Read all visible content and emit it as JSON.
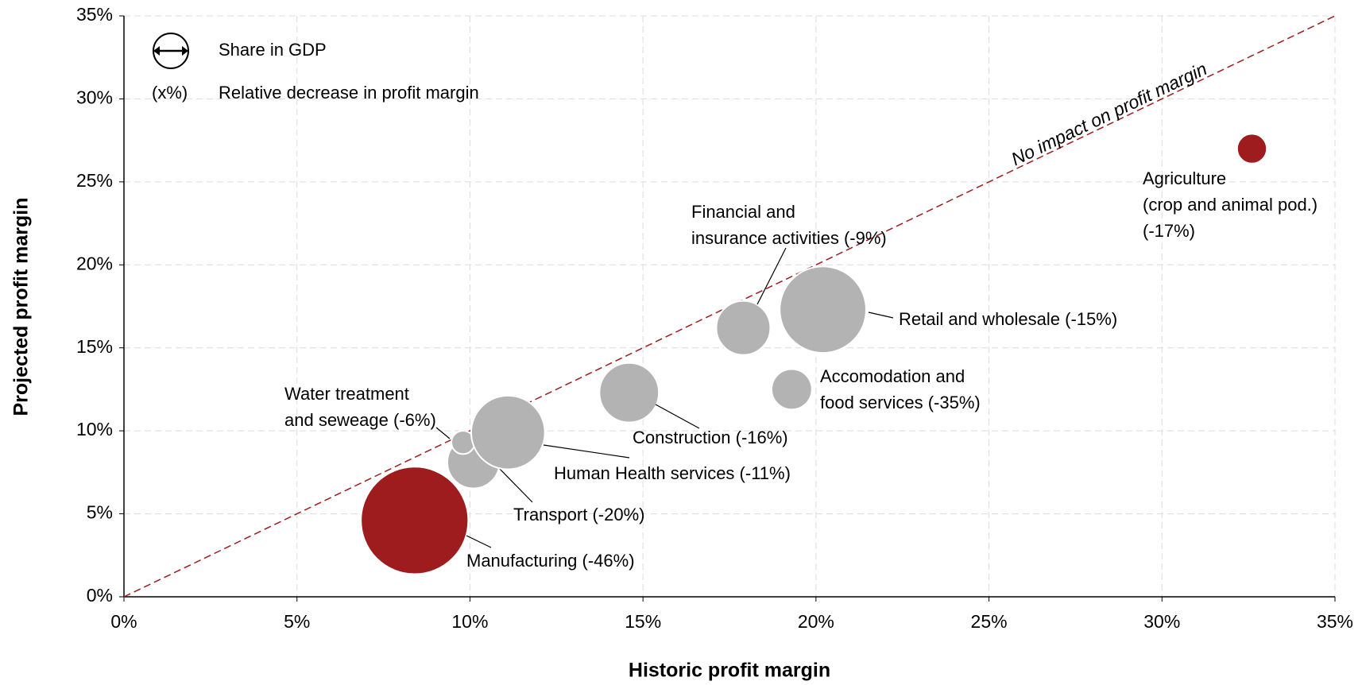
{
  "chart_data": {
    "type": "bubble",
    "xlabel": "Historic profit margin",
    "ylabel": "Projected profit margin",
    "xlim": [
      0,
      35
    ],
    "ylim": [
      0,
      35
    ],
    "xticks": [
      {
        "value": 0,
        "label": "0%"
      },
      {
        "value": 5,
        "label": "5%"
      },
      {
        "value": 10,
        "label": "10%"
      },
      {
        "value": 15,
        "label": "15%"
      },
      {
        "value": 20,
        "label": "20%"
      },
      {
        "value": 25,
        "label": "25%"
      },
      {
        "value": 30,
        "label": "30%"
      },
      {
        "value": 35,
        "label": "35%"
      }
    ],
    "yticks": [
      {
        "value": 0,
        "label": "0%"
      },
      {
        "value": 5,
        "label": "5%"
      },
      {
        "value": 10,
        "label": "10%"
      },
      {
        "value": 15,
        "label": "15%"
      },
      {
        "value": 20,
        "label": "20%"
      },
      {
        "value": 25,
        "label": "25%"
      },
      {
        "value": 30,
        "label": "30%"
      },
      {
        "value": 35,
        "label": "35%"
      }
    ],
    "grid": true,
    "diagonal": {
      "label": "No impact on profit margin",
      "color": "#9e1b1e"
    },
    "legend": {
      "size": "Share in GDP",
      "note_symbol": "(x%)",
      "note": "Relative decrease in profit margin"
    },
    "points": [
      {
        "label": [
          "Manufacturing (-46%)"
        ],
        "x": 8.4,
        "y": 4.6,
        "size": 17,
        "color": "#9e1b1e"
      },
      {
        "label": [
          "Transport (-20%)"
        ],
        "x": 10.1,
        "y": 8.1,
        "size": 4,
        "color": "#b3b3b3"
      },
      {
        "label": [
          "Water treatment",
          "and seweage (-6%)"
        ],
        "x": 9.8,
        "y": 9.3,
        "size": 0.8,
        "color": "#b3b3b3"
      },
      {
        "label": [
          "Human Health services (-11%)"
        ],
        "x": 11.1,
        "y": 9.9,
        "size": 8,
        "color": "#b3b3b3"
      },
      {
        "label": [
          "Construction (-16%)"
        ],
        "x": 14.6,
        "y": 12.3,
        "size": 5.2,
        "color": "#b3b3b3"
      },
      {
        "label": [
          "Financial and",
          "insurance activities (-9%)"
        ],
        "x": 17.9,
        "y": 16.2,
        "size": 4.3,
        "color": "#b3b3b3"
      },
      {
        "label": [
          "Retail and wholesale (-15%)"
        ],
        "x": 20.2,
        "y": 17.3,
        "size": 11,
        "color": "#b3b3b3"
      },
      {
        "label": [
          "Accomodation and",
          "food services (-35%)"
        ],
        "x": 19.3,
        "y": 12.5,
        "size": 2.4,
        "color": "#b3b3b3"
      },
      {
        "label": [
          "Agriculture",
          "(crop and animal pod.)",
          "(-17%)"
        ],
        "x": 32.6,
        "y": 27.0,
        "size": 1.3,
        "color": "#9e1b1e"
      }
    ]
  }
}
